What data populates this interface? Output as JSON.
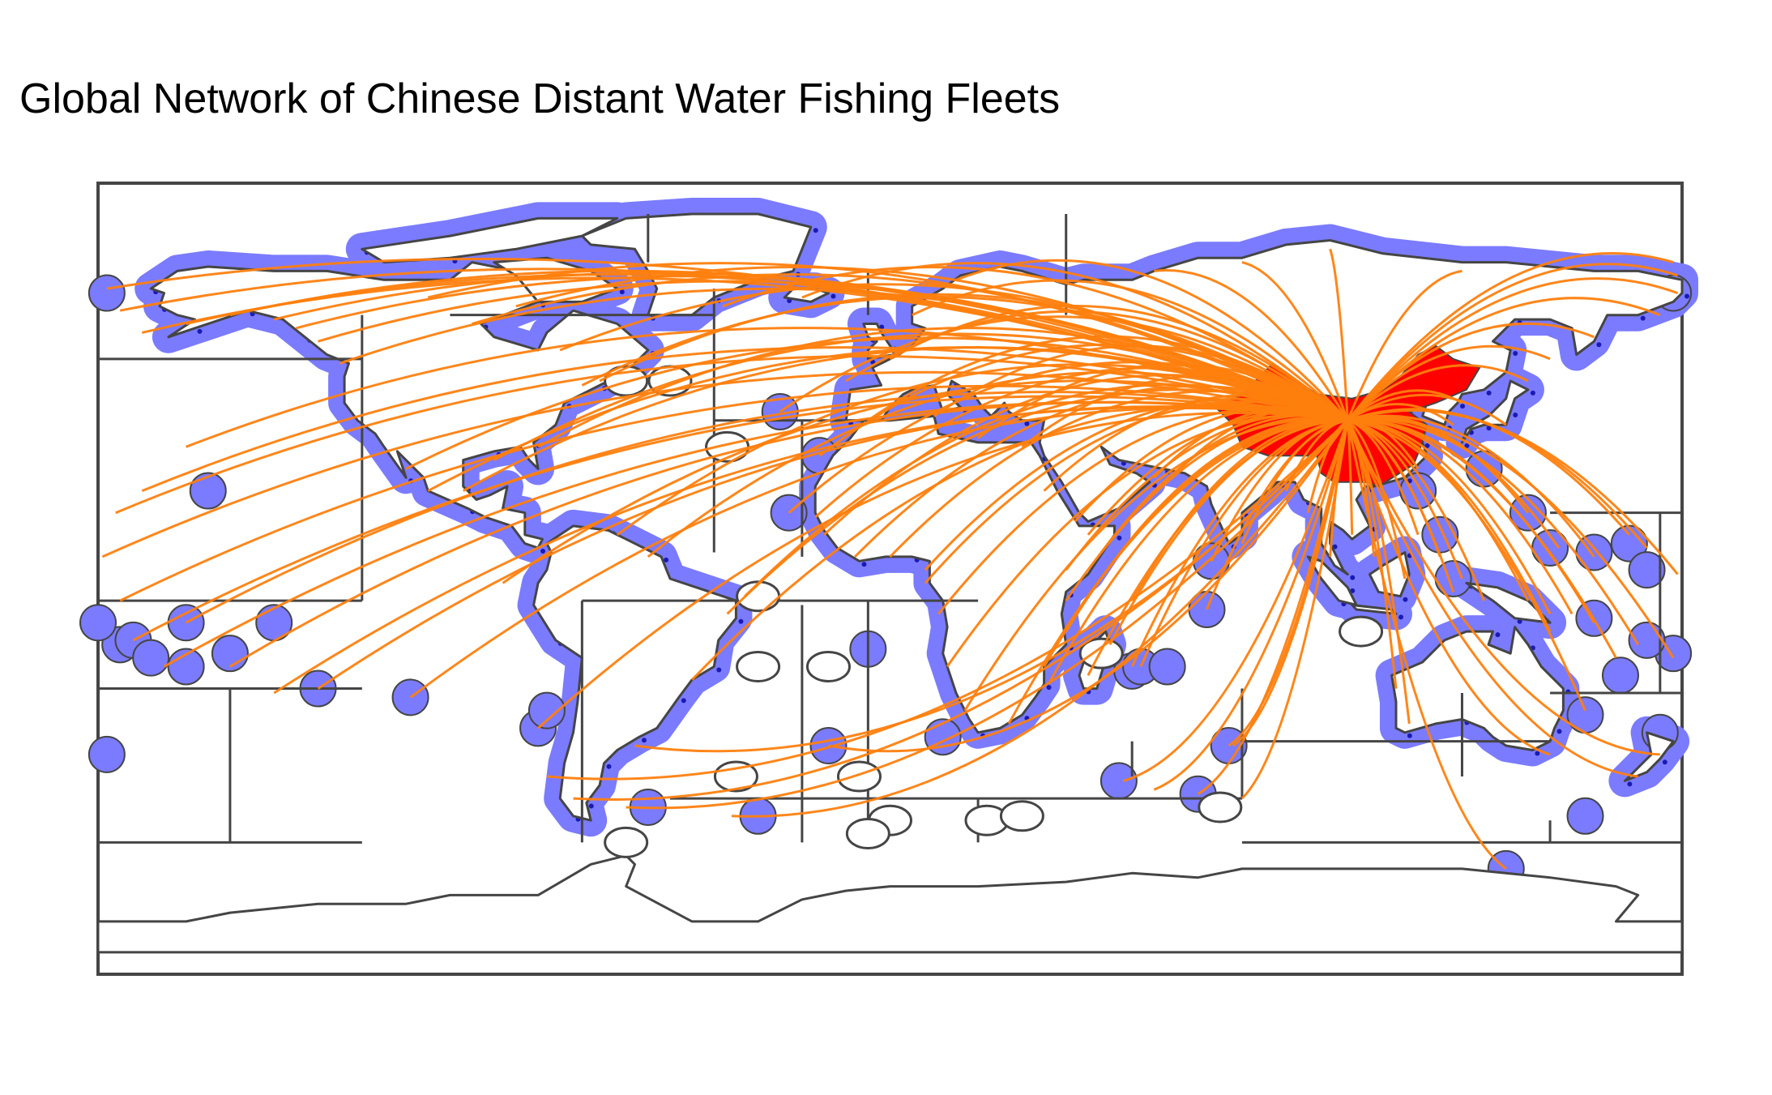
{
  "title": "Global Network of Chinese Distant Water Fishing Fleets",
  "colors": {
    "eez_fill": "#7b7bff",
    "fishing_points": "#1a1ab4",
    "china_fill": "#ff0000",
    "route_lines": "#ff7f0e",
    "boundaries": "#454545",
    "land": "#ffffff"
  },
  "origin": {
    "name": "China",
    "lon": 104,
    "lat": 36
  },
  "destinations": [
    {
      "lon": -178,
      "lat": 66
    },
    {
      "lon": -175,
      "lat": 61
    },
    {
      "lon": -170,
      "lat": 56
    },
    {
      "lon": -160,
      "lat": 58
    },
    {
      "lon": -150,
      "lat": 60
    },
    {
      "lon": -140,
      "lat": 59
    },
    {
      "lon": -135,
      "lat": 57
    },
    {
      "lon": -130,
      "lat": 54
    },
    {
      "lon": -125,
      "lat": 49
    },
    {
      "lon": -105,
      "lat": 64
    },
    {
      "lon": -95,
      "lat": 58
    },
    {
      "lon": -85,
      "lat": 62
    },
    {
      "lon": -75,
      "lat": 52
    },
    {
      "lon": -70,
      "lat": 44
    },
    {
      "lon": -66,
      "lat": 45
    },
    {
      "lon": -80,
      "lat": 30
    },
    {
      "lon": -90,
      "lat": 27
    },
    {
      "lon": -97,
      "lat": 20
    },
    {
      "lon": -105,
      "lat": 20
    },
    {
      "lon": -110,
      "lat": 25
    },
    {
      "lon": -160,
      "lat": 30
    },
    {
      "lon": -170,
      "lat": 20
    },
    {
      "lon": -176,
      "lat": 15
    },
    {
      "lon": -179,
      "lat": 5
    },
    {
      "lon": -175,
      "lat": -5
    },
    {
      "lon": -172,
      "lat": -14
    },
    {
      "lon": -165,
      "lat": -20
    },
    {
      "lon": -160,
      "lat": -10
    },
    {
      "lon": -150,
      "lat": -20
    },
    {
      "lon": -140,
      "lat": -26
    },
    {
      "lon": -130,
      "lat": -25
    },
    {
      "lon": -109,
      "lat": -27
    },
    {
      "lon": -88,
      "lat": -1
    },
    {
      "lon": -80,
      "lat": -34
    },
    {
      "lon": -78,
      "lat": -45
    },
    {
      "lon": -72,
      "lat": -50
    },
    {
      "lon": -62,
      "lat": 10
    },
    {
      "lon": -55,
      "lat": 5
    },
    {
      "lon": -37,
      "lat": -8
    },
    {
      "lon": -33,
      "lat": -4
    },
    {
      "lon": -45,
      "lat": -23
    },
    {
      "lon": -58,
      "lat": -38
    },
    {
      "lon": -60,
      "lat": -52
    },
    {
      "lon": -36,
      "lat": -54
    },
    {
      "lon": 70,
      "lat": -49
    },
    {
      "lon": 140,
      "lat": -66
    },
    {
      "lon": -38,
      "lat": 62
    },
    {
      "lon": -20,
      "lat": 64
    },
    {
      "lon": -10,
      "lat": 45
    },
    {
      "lon": -16,
      "lat": 28
    },
    {
      "lon": -23,
      "lat": 15
    },
    {
      "lon": -17,
      "lat": 14
    },
    {
      "lon": -15,
      "lat": 10
    },
    {
      "lon": -8,
      "lat": 5
    },
    {
      "lon": 0,
      "lat": 5
    },
    {
      "lon": 8,
      "lat": 2
    },
    {
      "lon": 8,
      "lat": -1
    },
    {
      "lon": 11,
      "lat": -8
    },
    {
      "lon": 13,
      "lat": -20
    },
    {
      "lon": 17,
      "lat": -30
    },
    {
      "lon": 27,
      "lat": -33
    },
    {
      "lon": -14,
      "lat": -38
    },
    {
      "lon": 10,
      "lat": 37
    },
    {
      "lon": 20,
      "lat": 32
    },
    {
      "lon": 30,
      "lat": 30
    },
    {
      "lon": 5,
      "lat": 60
    },
    {
      "lon": 15,
      "lat": 68
    },
    {
      "lon": 0,
      "lat": 50
    },
    {
      "lon": 35,
      "lat": 20
    },
    {
      "lon": 42,
      "lat": 13
    },
    {
      "lon": 45,
      "lat": 10
    },
    {
      "lon": 48,
      "lat": 6
    },
    {
      "lon": 40,
      "lat": 2
    },
    {
      "lon": 40,
      "lat": -5
    },
    {
      "lon": 40,
      "lat": -12
    },
    {
      "lon": 35,
      "lat": -20
    },
    {
      "lon": 36,
      "lat": -24
    },
    {
      "lon": 45,
      "lat": -22
    },
    {
      "lon": 50,
      "lat": -15
    },
    {
      "lon": 55,
      "lat": -20
    },
    {
      "lon": 57,
      "lat": -20
    },
    {
      "lon": 55,
      "lat": -5
    },
    {
      "lon": 73,
      "lat": 4
    },
    {
      "lon": 72,
      "lat": -7
    },
    {
      "lon": 60,
      "lat": 23
    },
    {
      "lon": 65,
      "lat": 24
    },
    {
      "lon": 80,
      "lat": 8
    },
    {
      "lon": 90,
      "lat": 20
    },
    {
      "lon": 95,
      "lat": 15
    },
    {
      "lon": 100,
      "lat": 5
    },
    {
      "lon": 105,
      "lat": 10
    },
    {
      "lon": 110,
      "lat": 5
    },
    {
      "lon": 117,
      "lat": 0
    },
    {
      "lon": 120,
      "lat": 10
    },
    {
      "lon": 125,
      "lat": 5
    },
    {
      "lon": 128,
      "lat": -3
    },
    {
      "lon": 130,
      "lat": 0
    },
    {
      "lon": 135,
      "lat": -5
    },
    {
      "lon": 145,
      "lat": -5
    },
    {
      "lon": 150,
      "lat": -8
    },
    {
      "lon": 150,
      "lat": -12
    },
    {
      "lon": 155,
      "lat": -8
    },
    {
      "lon": 160,
      "lat": -10
    },
    {
      "lon": 165,
      "lat": -18
    },
    {
      "lon": 170,
      "lat": -15
    },
    {
      "lon": 178,
      "lat": -18
    },
    {
      "lon": 179,
      "lat": 1
    },
    {
      "lon": 172,
      "lat": 7
    },
    {
      "lon": 168,
      "lat": 10
    },
    {
      "lon": 160,
      "lat": 5
    },
    {
      "lon": 152,
      "lat": 7
    },
    {
      "lon": 145,
      "lat": 15
    },
    {
      "lon": 140,
      "lat": 35
    },
    {
      "lon": 145,
      "lat": 45
    },
    {
      "lon": 150,
      "lat": 50
    },
    {
      "lon": 160,
      "lat": 55
    },
    {
      "lon": 175,
      "lat": 60
    },
    {
      "lon": 179,
      "lat": 65
    },
    {
      "lon": 179,
      "lat": 69
    },
    {
      "lon": 178,
      "lat": 72
    },
    {
      "lon": 130,
      "lat": 70
    },
    {
      "lon": 100,
      "lat": 75
    },
    {
      "lon": 80,
      "lat": 72
    },
    {
      "lon": 60,
      "lat": 70
    },
    {
      "lon": 130,
      "lat": 40
    },
    {
      "lon": 128,
      "lat": 35
    },
    {
      "lon": 120,
      "lat": 25
    },
    {
      "lon": 115,
      "lat": -25
    },
    {
      "lon": 118,
      "lat": -33
    },
    {
      "lon": 150,
      "lat": -40
    },
    {
      "lon": 170,
      "lat": -45
    },
    {
      "lon": 175,
      "lat": -40
    },
    {
      "lon": 158,
      "lat": -30
    },
    {
      "lon": 78,
      "lat": -38
    },
    {
      "lon": 77,
      "lat": -38
    },
    {
      "lon": 53,
      "lat": -46
    },
    {
      "lon": 60,
      "lat": -48
    },
    {
      "lon": 80,
      "lat": -50
    },
    {
      "lon": -25,
      "lat": 38
    },
    {
      "lon": -5,
      "lat": 36
    }
  ]
}
